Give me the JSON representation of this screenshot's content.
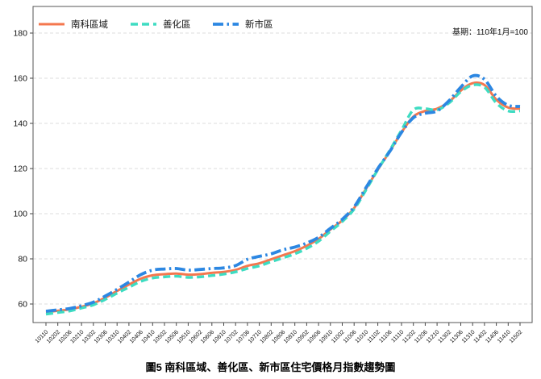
{
  "chart_data": {
    "type": "line",
    "title": "圖5 南科區域、善化區、新市區住宅價格月指數趨勢圖",
    "note": "基期：110年1月=100",
    "xlabel": "",
    "ylabel": "",
    "y_ticks": [
      60,
      80,
      100,
      120,
      140,
      160,
      180
    ],
    "grid": "horizontal-dashed",
    "legend_position": "top-left-inside",
    "categories": [
      "10110",
      "10202",
      "10206",
      "10210",
      "10302",
      "10306",
      "10310",
      "10402",
      "10406",
      "10410",
      "10502",
      "10506",
      "10510",
      "10602",
      "10606",
      "10610",
      "10702",
      "10706",
      "10710",
      "10802",
      "10806",
      "10810",
      "10902",
      "10906",
      "10910",
      "11002",
      "11006",
      "11010",
      "11102",
      "11106",
      "11110",
      "11202",
      "11206",
      "11210",
      "11302",
      "11306",
      "11310",
      "11402",
      "11406",
      "11410",
      "11502"
    ],
    "series": [
      {
        "name": "南科區域",
        "color": "#F4774E",
        "style": "solid",
        "values": [
          56.3,
          57.0,
          57.6,
          58.8,
          60.3,
          62.8,
          65.8,
          68.6,
          71.2,
          72.7,
          73.2,
          73.5,
          73.0,
          73.2,
          73.8,
          74.2,
          75.1,
          76.9,
          78.0,
          79.8,
          81.6,
          83.4,
          85.8,
          88.8,
          93.0,
          97.0,
          102.5,
          111.0,
          119.5,
          127.5,
          136.0,
          143.0,
          145.5,
          146.5,
          149.5,
          154.5,
          157.8,
          157.0,
          150.5,
          147.0,
          146.5
        ]
      },
      {
        "name": "善化區",
        "color": "#3EDCC2",
        "style": "dashed",
        "values": [
          55.5,
          56.2,
          56.9,
          58.2,
          59.6,
          62.0,
          64.8,
          67.4,
          70.0,
          71.5,
          72.0,
          72.3,
          71.8,
          72.0,
          72.6,
          73.2,
          74.2,
          75.7,
          76.9,
          78.7,
          80.4,
          82.2,
          84.6,
          87.8,
          92.2,
          96.5,
          102.0,
          110.5,
          119.5,
          128.0,
          137.0,
          146.0,
          146.5,
          146.0,
          149.0,
          154.0,
          157.0,
          156.0,
          149.0,
          145.5,
          145.5
        ]
      },
      {
        "name": "新市區",
        "color": "#2C87E2",
        "style": "dashdot",
        "values": [
          56.8,
          57.4,
          58.0,
          59.2,
          60.8,
          63.5,
          66.5,
          69.7,
          73.0,
          75.0,
          75.5,
          75.7,
          75.0,
          75.3,
          75.7,
          76.0,
          77.0,
          79.8,
          81.1,
          82.2,
          84.0,
          85.2,
          87.0,
          89.5,
          93.5,
          97.5,
          103.0,
          111.5,
          120.0,
          127.5,
          136.0,
          142.5,
          144.5,
          145.5,
          150.0,
          156.0,
          161.0,
          159.5,
          152.0,
          148.0,
          147.5
        ]
      }
    ]
  }
}
